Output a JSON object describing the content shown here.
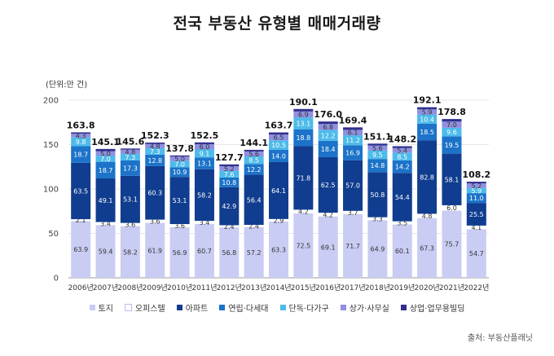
{
  "title": "전국 부동산 유형별 매매거래량",
  "unit": "(단위:만 건)",
  "source": "출처: 부동산플래닛",
  "chart_data": {
    "type": "bar",
    "stacked": true,
    "categories": [
      "2006년",
      "2007년",
      "2008년",
      "2009년",
      "2010년",
      "2011년",
      "2012년",
      "2013년",
      "2014년",
      "2015년",
      "2016년",
      "2017년",
      "2018년",
      "2019년",
      "2020년",
      "2021년",
      "2022년"
    ],
    "ylim": [
      0,
      200
    ],
    "yticks": [
      0,
      50,
      100,
      150,
      200
    ],
    "totals": [
      "163.8",
      "145.1",
      "145.6",
      "152.3",
      "137.8",
      "152.5",
      "127.7",
      "144.1",
      "163.7",
      "190.1",
      "176.0",
      "169.4",
      "151.1",
      "148.2",
      "192.1",
      "178.8",
      "108.2"
    ],
    "legend_position": "bottom",
    "series": [
      {
        "name": "토지",
        "color": "#c9cdf3",
        "labels_dark": true,
        "values": [
          63.9,
          59.4,
          58.2,
          61.9,
          56.9,
          60.7,
          56.8,
          57.2,
          63.3,
          72.5,
          69.1,
          71.7,
          64.9,
          60.1,
          67.3,
          75.7,
          54.7
        ]
      },
      {
        "name": "오피스텔",
        "color": "#ffffff",
        "labels_dark": true,
        "values": [
          2.1,
          3.4,
          3.6,
          3.6,
          3.6,
          3.4,
          2.4,
          2.4,
          2.9,
          4.2,
          4.2,
          3.7,
          3.3,
          3.5,
          4.8,
          6.0,
          4.1
        ]
      },
      {
        "name": "아파트",
        "color": "#103d8f",
        "labels_dark": false,
        "values": [
          63.5,
          49.1,
          53.1,
          60.3,
          53.1,
          58.2,
          42.9,
          56.4,
          64.1,
          71.8,
          62.5,
          57.0,
          50.8,
          54.4,
          82.8,
          58.1,
          25.5
        ]
      },
      {
        "name": "연립·다세대",
        "color": "#1c73c9",
        "labels_dark": false,
        "values": [
          18.7,
          18.7,
          17.3,
          12.8,
          10.9,
          13.1,
          10.8,
          12.2,
          14.0,
          18.8,
          18.4,
          16.9,
          14.8,
          14.2,
          18.5,
          19.5,
          11.0
        ]
      },
      {
        "name": "단독·다가구",
        "color": "#4dbbea",
        "labels_dark": false,
        "values": [
          9.8,
          7.0,
          7.3,
          7.3,
          7.0,
          9.1,
          7.6,
          8.5,
          10.5,
          13.1,
          12.2,
          11.2,
          9.5,
          8.5,
          10.4,
          9.6,
          5.9
        ]
      },
      {
        "name": "상가·사무실",
        "color": "#8f90df",
        "labels_dark": true,
        "values": [
          4.3,
          5.0,
          4.8,
          4.8,
          5.0,
          6.0,
          5.2,
          5.6,
          6.5,
          6.9,
          6.8,
          6.1,
          5.6,
          5.4,
          5.9,
          7.0,
          5.2
        ]
      },
      {
        "name": "상업·업무용빌딩",
        "color": "#302f90",
        "labels_dark": false,
        "values": [
          1.5,
          2.5,
          1.3,
          1.6,
          1.3,
          2.0,
          2.0,
          1.8,
          2.4,
          2.8,
          2.8,
          2.8,
          2.2,
          2.1,
          2.4,
          2.9,
          1.8
        ]
      }
    ],
    "value_labels": [
      [
        "63.9",
        "2.1",
        "63.5",
        "18.7",
        "9.8",
        "4.3",
        ""
      ],
      [
        "59.4",
        "3.4",
        "49.1",
        "18.7",
        "7.0",
        "5.0",
        ""
      ],
      [
        "58.2",
        "3.6",
        "53.1",
        "17.3",
        "7.3",
        "4.8",
        ""
      ],
      [
        "61.9",
        "3.6",
        "60.3",
        "12.8",
        "7.3",
        "4.8",
        ""
      ],
      [
        "56.9",
        "3.6",
        "53.1",
        "10.9",
        "7.0",
        "5.0",
        ""
      ],
      [
        "60.7",
        "3.4",
        "58.2",
        "13.1",
        "9.1",
        "6.0",
        ""
      ],
      [
        "56.8",
        "2.4",
        "42.9",
        "10.8",
        "7.6",
        "5.2",
        ""
      ],
      [
        "57.2",
        "2.4",
        "56.4",
        "12.2",
        "8.5",
        "5.6",
        ""
      ],
      [
        "63.3",
        "2.9",
        "64.1",
        "14.0",
        "10.5",
        "6.5",
        ""
      ],
      [
        "72.5",
        "4.2",
        "71.8",
        "18.8",
        "13.1",
        "6.9",
        ""
      ],
      [
        "69.1",
        "4.2",
        "62.5",
        "18.4",
        "12.2",
        "6.8",
        ""
      ],
      [
        "71.7",
        "3.7",
        "57.0",
        "16.9",
        "11.2",
        "6.1",
        ""
      ],
      [
        "64.9",
        "3.3",
        "50.8",
        "14.8",
        "9.5",
        "5.6",
        ""
      ],
      [
        "60.1",
        "3.5",
        "54.4",
        "14.2",
        "8.5",
        "5.4",
        ""
      ],
      [
        "67.3",
        "4.8",
        "82.8",
        "18.5",
        "10.4",
        "5.9",
        ""
      ],
      [
        "75.7",
        "6.0",
        "58.1",
        "19.5",
        "9.6",
        "7.0",
        ""
      ],
      [
        "54.7",
        "4.1",
        "25.5",
        "11.0",
        "5.9",
        "5.2",
        ""
      ]
    ]
  }
}
